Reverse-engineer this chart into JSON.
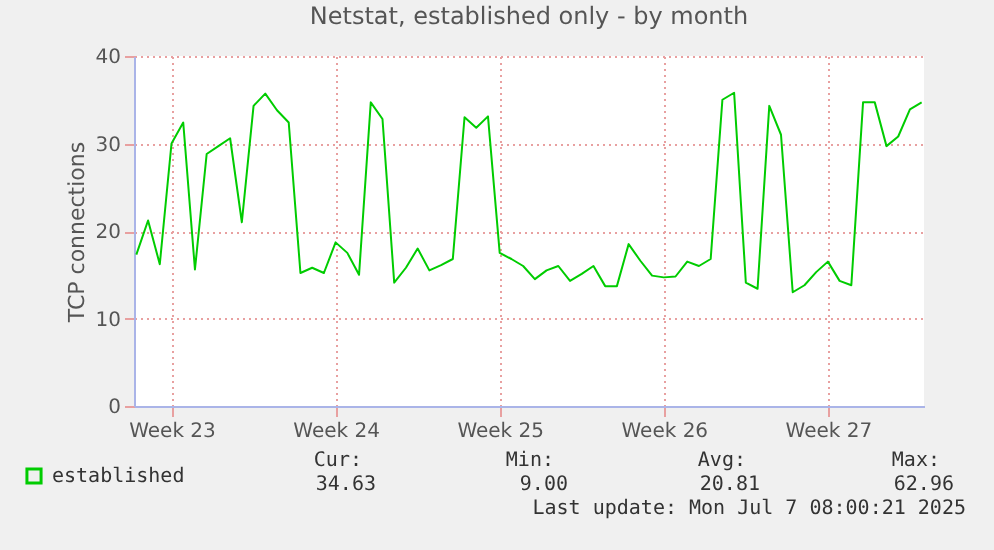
{
  "chart_data": {
    "type": "line",
    "title": "Netstat, established only - by month",
    "ylabel": "TCP connections",
    "categories": [
      null,
      null,
      null,
      "Week 23",
      null,
      null,
      null,
      null,
      null,
      null,
      null,
      null,
      null,
      null,
      null,
      null,
      null,
      "Week 24",
      null,
      null,
      null,
      null,
      null,
      null,
      null,
      null,
      null,
      null,
      null,
      null,
      null,
      "Week 25",
      null,
      null,
      null,
      null,
      null,
      null,
      null,
      null,
      null,
      null,
      null,
      null,
      null,
      "Week 26",
      null,
      null,
      null,
      null,
      null,
      null,
      null,
      null,
      null,
      null,
      null,
      null,
      null,
      "Week 27",
      null,
      null,
      null,
      null,
      null,
      null,
      null,
      null
    ],
    "ylim": [
      0,
      40
    ],
    "yticks": [
      0,
      10,
      20,
      30,
      40
    ],
    "grid": true,
    "legend": "bottom",
    "line_style": "solid",
    "marker": "none",
    "annotations": [
      "Cur:",
      "Min:",
      "Avg:",
      "Max:",
      "34.63",
      "9.00",
      "20.81",
      "62.96",
      "Last update: Mon Jul  7 08:00:21 2025"
    ],
    "series": [
      {
        "name": "established",
        "color": "#00cc00",
        "values": [
          17.3,
          21.2,
          16.2,
          30.0,
          32.4,
          15.6,
          28.8,
          29.7,
          30.6,
          21.0,
          34.3,
          35.7,
          33.8,
          32.4,
          15.2,
          15.8,
          15.2,
          18.7,
          17.5,
          15.0,
          34.7,
          32.8,
          14.1,
          15.8,
          18.0,
          15.5,
          16.1,
          16.8,
          33.0,
          31.8,
          33.1,
          17.5,
          16.8,
          16.0,
          14.5,
          15.5,
          16.0,
          14.3,
          15.1,
          16.0,
          13.7,
          13.7,
          18.5,
          16.6,
          14.9,
          14.7,
          14.8,
          16.5,
          16.0,
          16.8,
          35.0,
          35.8,
          14.1,
          13.4,
          34.3,
          31.0,
          13.0,
          13.8,
          15.3,
          16.5,
          14.3,
          13.8,
          34.7,
          34.7,
          29.7,
          30.8,
          33.9,
          34.7
        ]
      }
    ]
  }
}
